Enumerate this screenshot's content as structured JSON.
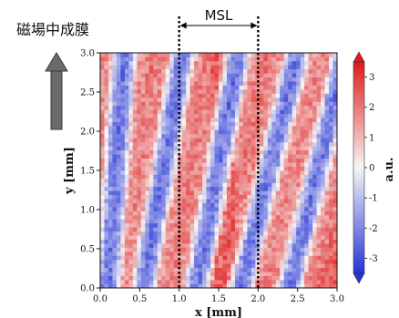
{
  "chart_data": {
    "type": "heatmap",
    "title": "",
    "xlabel": "x [mm]",
    "ylabel": "y [mm]",
    "xlim": [
      0.0,
      3.0
    ],
    "ylim": [
      0.0,
      3.0
    ],
    "xticks": [
      "0.0",
      "0.5",
      "1.0",
      "1.5",
      "2.0",
      "2.5",
      "3.0"
    ],
    "yticks": [
      "0.0",
      "0.5",
      "1.0",
      "1.5",
      "2.0",
      "2.5",
      "3.0"
    ],
    "colorbar": {
      "label": "a.u.",
      "min": -3.5,
      "max": 3.5,
      "ticks": [
        "-3",
        "-2",
        "-1",
        "0",
        "1",
        "2",
        "3"
      ],
      "colormap": "blue-white-red",
      "low_color": "#2533d6",
      "mid_color": "#f6f6f6",
      "high_color": "#e01a1a"
    },
    "field_pattern": {
      "description": "diagonal alternating stripes",
      "blue_bands_x_at_y0": [
        0.1,
        0.55,
        1.22,
        1.78,
        2.4
      ],
      "blue_bands_x_at_y3": [
        0.3,
        1.05,
        1.75,
        2.5,
        3.1
      ]
    },
    "region": {
      "name": "MSL",
      "x_range": [
        1.0,
        2.0
      ]
    }
  },
  "annotations": {
    "caption": "磁場中成膜",
    "region_label": "MSL"
  },
  "colors": {
    "arrow_fill": "#6b6b6b",
    "arrow_edge": "#3a3a3a"
  }
}
